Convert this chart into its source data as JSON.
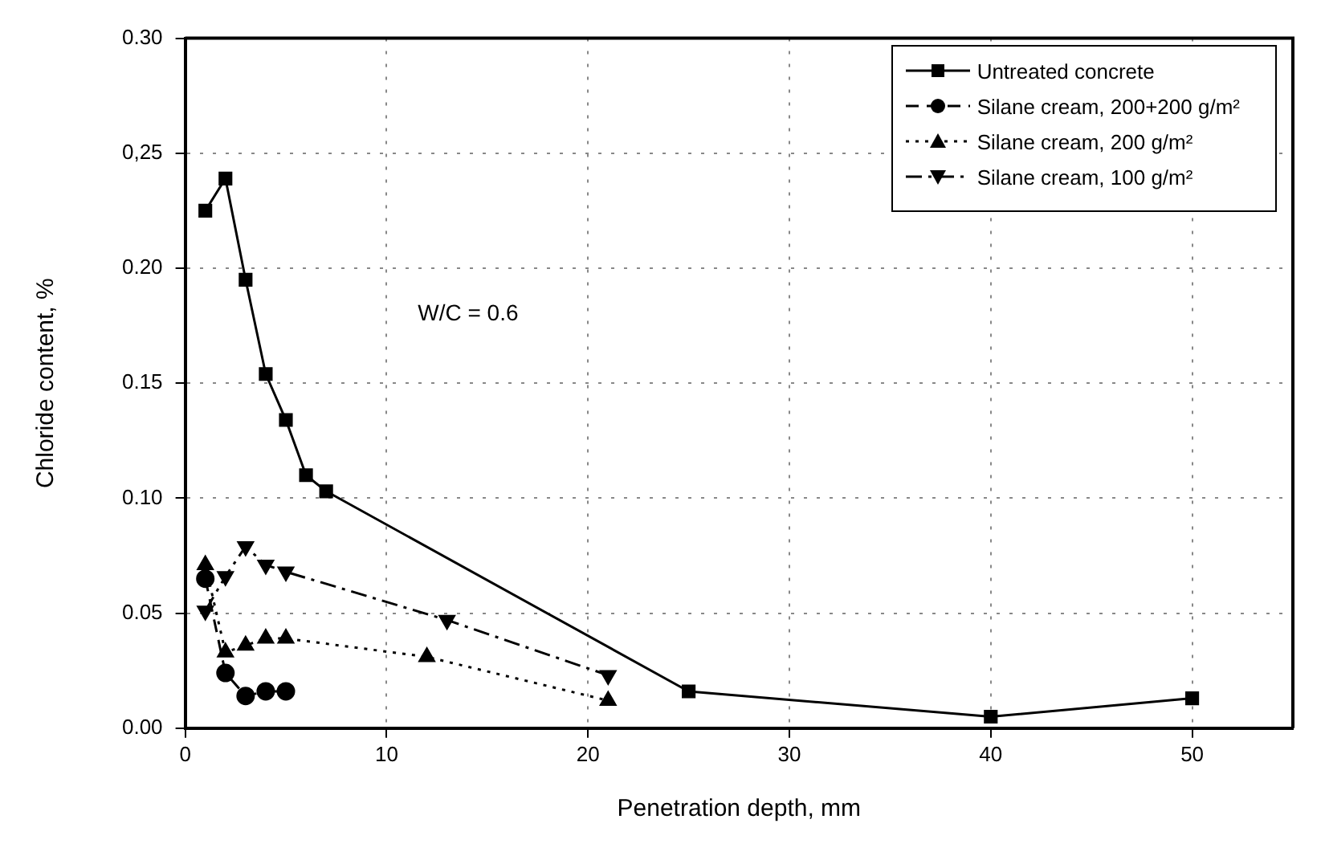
{
  "chart_data": {
    "type": "line",
    "xlabel": "Penetration depth, mm",
    "ylabel": "Chloride content, %",
    "xlim": [
      0,
      55
    ],
    "xticks": [
      0,
      10,
      20,
      30,
      40,
      50
    ],
    "ylim": [
      0,
      0.3
    ],
    "yticks": [
      {
        "value": 0,
        "label": "0.00"
      },
      {
        "value": 0.05,
        "label": "0.05"
      },
      {
        "value": 0.1,
        "label": "0.10"
      },
      {
        "value": 0.15,
        "label": "0.15"
      },
      {
        "value": 0.2,
        "label": "0.20"
      },
      {
        "value": 0.25,
        "label": "0,25"
      },
      {
        "value": 0.3,
        "label": "0.30"
      }
    ],
    "grid": true,
    "legend": "top right",
    "annotations": [
      "W/C = 0.6"
    ],
    "series": [
      {
        "name": "Untreated concrete",
        "color": "#000000",
        "marker": "square",
        "line_style": "solid",
        "x": [
          1,
          2,
          3,
          4,
          5,
          6,
          7,
          25,
          40,
          50
        ],
        "values": [
          0.225,
          0.239,
          0.195,
          0.154,
          0.134,
          0.11,
          0.103,
          0.016,
          0.005,
          0.013
        ]
      },
      {
        "name": "Silane cream, 200+200 g/m²",
        "color": "#000000",
        "marker": "circle",
        "line_style": "dashed",
        "x": [
          1,
          2,
          3,
          4,
          5
        ],
        "values": [
          0.065,
          0.024,
          0.014,
          0.016,
          0.016
        ]
      },
      {
        "name": "Silane cream, 200 g/m²",
        "color": "#000000",
        "marker": "triangle",
        "line_style": "dotted",
        "x": [
          1,
          2,
          3,
          4,
          5,
          12,
          21
        ],
        "values": [
          0.071,
          0.033,
          0.036,
          0.039,
          0.039,
          0.031,
          0.012
        ]
      },
      {
        "name": "Silane cream, 100 g/m²",
        "color": "#000000",
        "marker": "triangle_down",
        "line_style": "dashdot",
        "x": [
          1,
          2,
          3,
          4,
          5,
          13,
          21
        ],
        "values": [
          0.051,
          0.066,
          0.079,
          0.071,
          0.068,
          0.047,
          0.023
        ]
      }
    ]
  }
}
